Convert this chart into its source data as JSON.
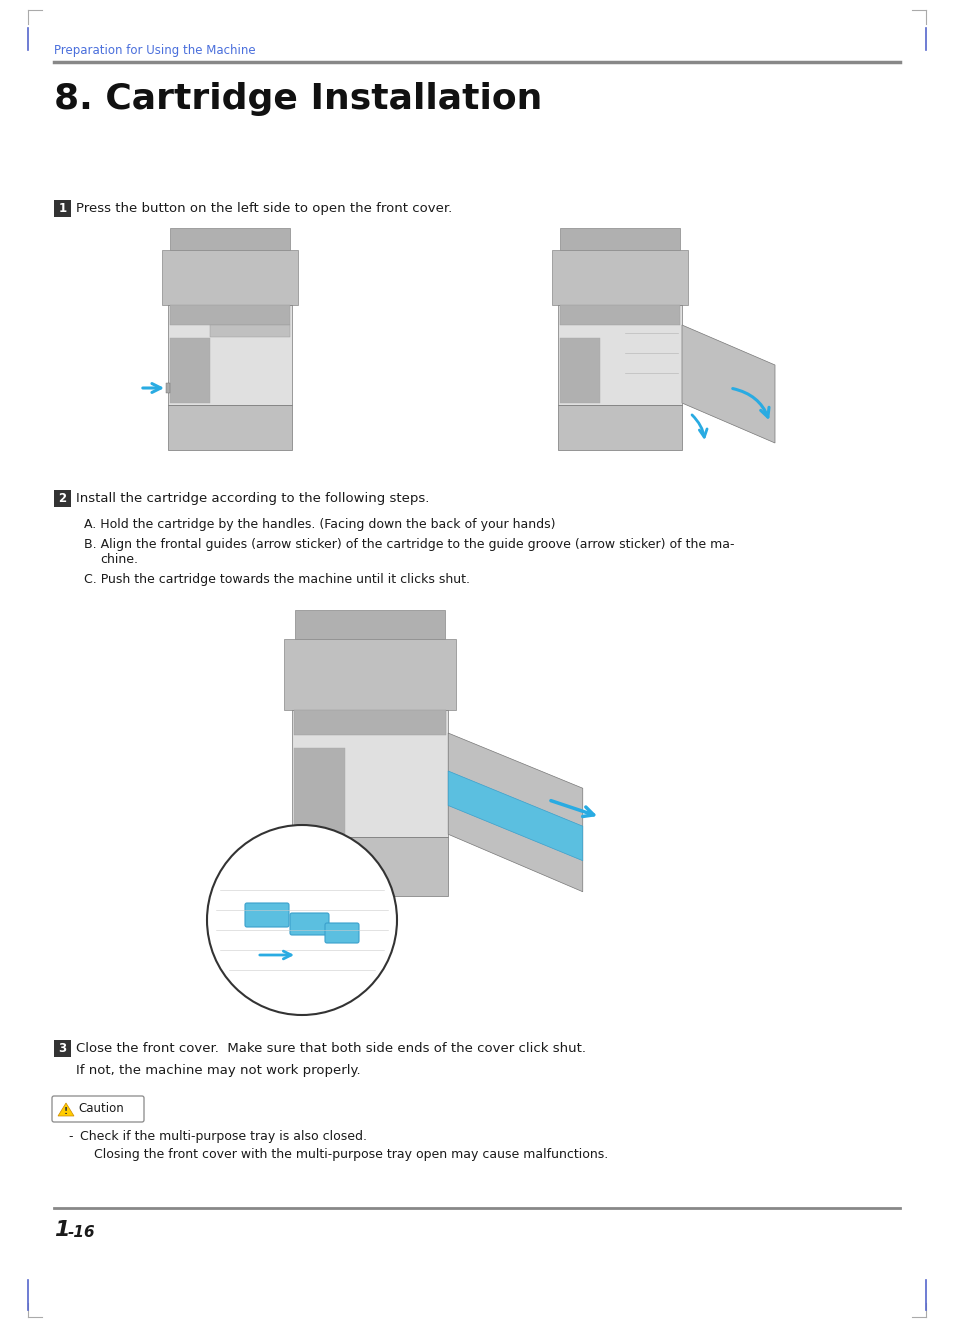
{
  "page_bg": "#ffffff",
  "header_text": "Preparation for Using the Machine",
  "header_color": "#4a6fdc",
  "header_line_color": "#888888",
  "title": "8. Cartridge Installation",
  "title_fontsize": 26,
  "title_color": "#111111",
  "step1_text": "Press the button on the left side to open the front cover.",
  "step2_text": "Install the cartridge according to the following steps.",
  "step2a": "A. Hold the cartridge by the handles. (Facing down the back of your hands)",
  "step2b_1": "B. Align the frontal guides (arrow sticker) of the cartridge to the guide groove (arrow sticker) of the ma-",
  "step2b_2": "chine.",
  "step2c": "C. Push the cartridge towards the machine until it clicks shut.",
  "step3_text": "Close the front cover.  Make sure that both side ends of the cover click shut.",
  "step3_text2": "If not, the machine may not work properly.",
  "caution_text": "Caution",
  "caution_bullet": "Check if the multi-purpose tray is also closed.",
  "caution_sub": "Closing the front cover with the multi-purpose tray open may cause malfunctions.",
  "footer_text": "1",
  "footer_text2": "-16",
  "step_box_color": "#333333",
  "step_text_color": "#ffffff",
  "body_text_color": "#1a1a1a",
  "caution_border_color": "#888888",
  "footer_line_color": "#888888",
  "corner_color": "#aaaaaa",
  "margin_color": "#5566cc",
  "arrow_color": "#29abe2",
  "printer_body": "#e0e0e0",
  "printer_dark": "#c0c0c0",
  "printer_darker": "#b0b0b0",
  "printer_light": "#ececec",
  "blue_part": "#5bbfe0"
}
